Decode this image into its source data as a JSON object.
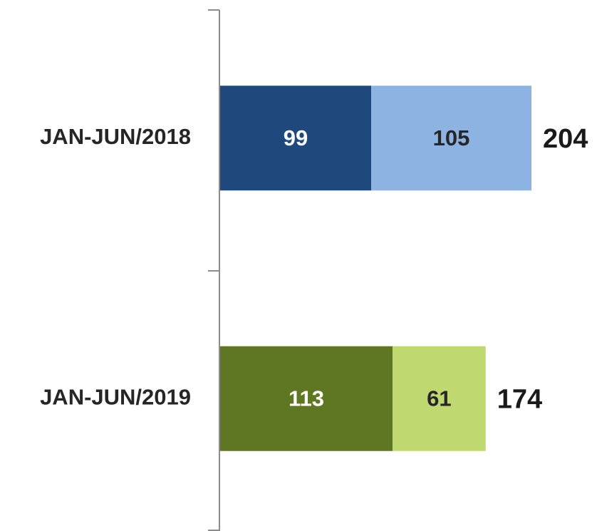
{
  "chart_data": {
    "type": "stacked-barh",
    "categories": [
      "JAN-JUN/2018",
      "JAN-JUN/2019"
    ],
    "series": [
      {
        "colors": [
          "#1f497d",
          "#5f7622"
        ],
        "values": [
          99,
          113
        ]
      },
      {
        "colors": [
          "#8db3e2",
          "#c0d870"
        ],
        "values": [
          105,
          61
        ]
      }
    ],
    "totals": [
      204,
      174
    ]
  }
}
